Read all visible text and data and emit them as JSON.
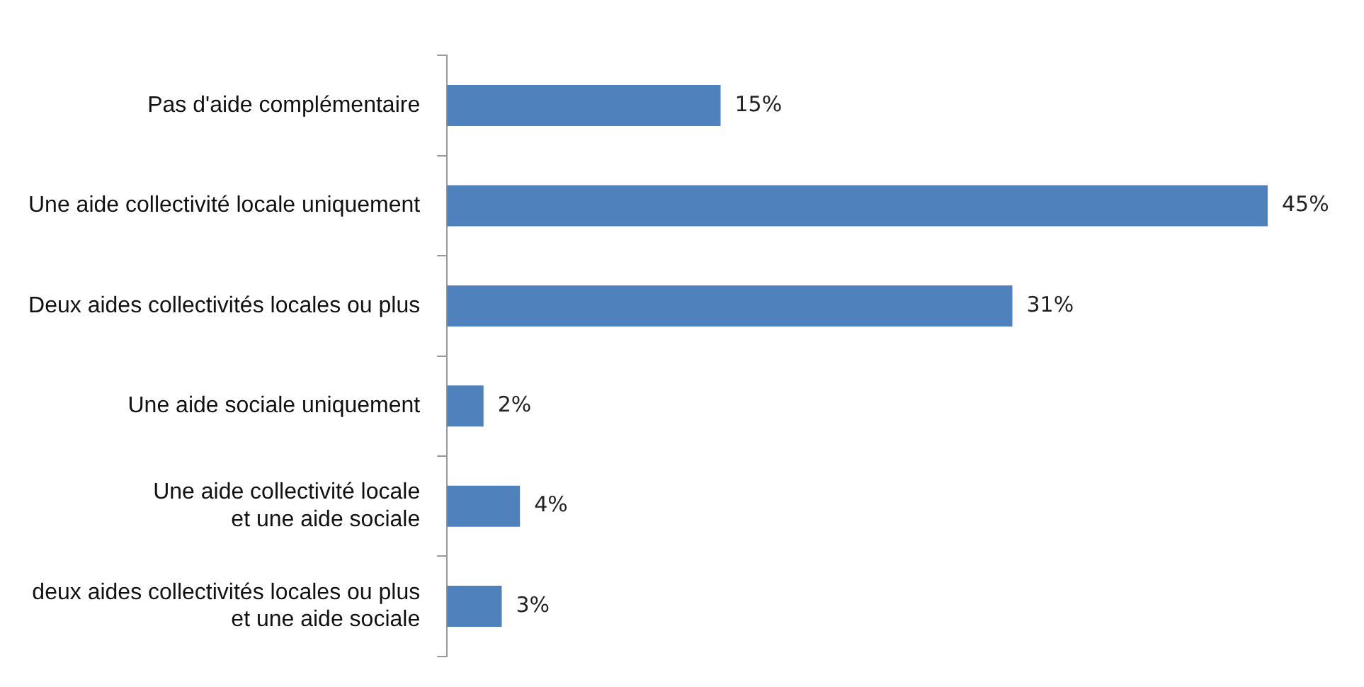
{
  "chart_data": {
    "type": "bar",
    "orientation": "horizontal",
    "categories": [
      "Pas d'aide complémentaire",
      "Une aide collectivité locale uniquement",
      "Deux aides collectivités locales ou plus",
      "Une aide sociale uniquement",
      "Une aide collectivité locale\net une aide sociale",
      "deux aides collectivités locales ou plus\net une aide sociale"
    ],
    "values": [
      15,
      45,
      31,
      2,
      4,
      3
    ],
    "value_labels": [
      "15%",
      "45%",
      "31%",
      "2%",
      "4%",
      "3%"
    ],
    "color": "#4f81bd",
    "legend": false
  }
}
